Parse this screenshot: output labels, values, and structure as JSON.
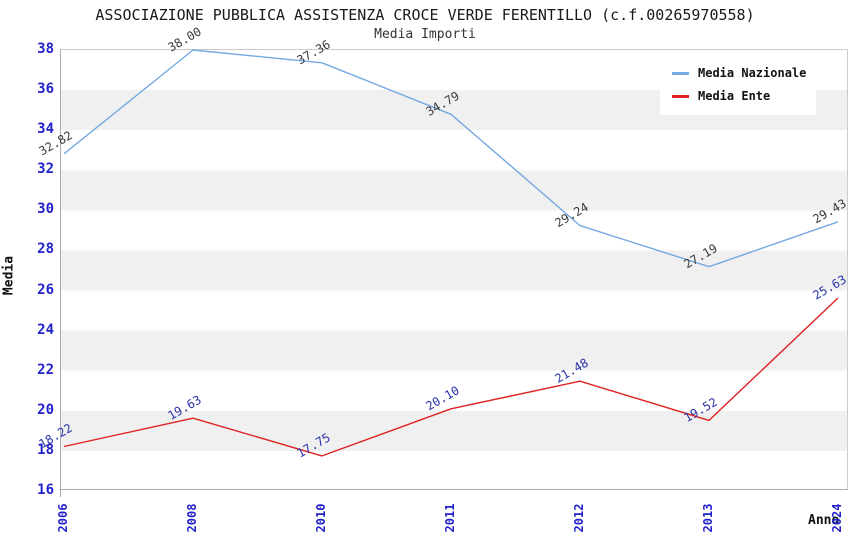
{
  "chart_data": {
    "type": "line",
    "title": "ASSOCIAZIONE PUBBLICA ASSISTENZA CROCE VERDE FERENTILLO (c.f.00265970558)",
    "subtitle": "Media Importi",
    "categories": [
      "2006",
      "2008",
      "2010",
      "2011",
      "2012",
      "2013",
      "2024"
    ],
    "series": [
      {
        "name": "Media Nazionale",
        "color": "#74A9E2",
        "label_color": "#3a3a3a",
        "values": [
          32.82,
          38.0,
          37.36,
          34.79,
          29.24,
          27.19,
          29.43
        ]
      },
      {
        "name": "Media Ente",
        "color": "#E02222",
        "label_color": "#2832AA",
        "values": [
          18.22,
          19.63,
          17.75,
          20.1,
          21.48,
          19.52,
          25.63
        ]
      }
    ],
    "xlabel": "Anno",
    "ylabel": "Media",
    "ylim": [
      16,
      38
    ],
    "ytick_step": 2,
    "grid": "horizontal-bands",
    "legend_position": "top-right",
    "colors": {
      "axis_tick": "#2222CC",
      "band": "#F0F0F0",
      "background": "#FFFFFF"
    }
  }
}
